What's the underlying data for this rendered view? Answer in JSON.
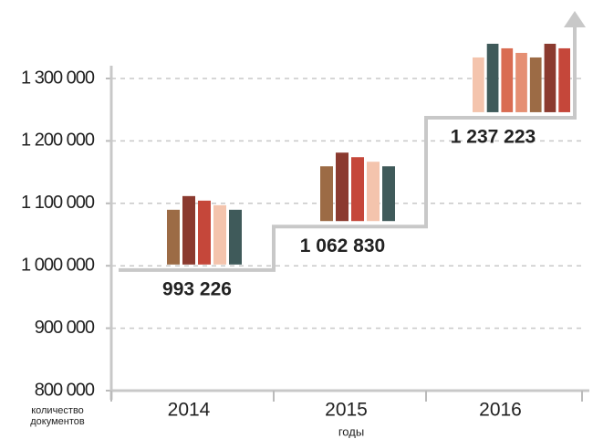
{
  "chart_data": {
    "type": "step",
    "y_label": "количество документов",
    "x_label": "годы",
    "categories": [
      "2014",
      "2015",
      "2016"
    ],
    "values": [
      993226,
      1062830,
      1237223
    ],
    "value_labels": [
      "993 226",
      "1 062 830",
      "1 237 223"
    ],
    "color": "#c8c8c8",
    "ylim": [
      800000,
      1300000
    ],
    "yticks": [
      {
        "value": 800000,
        "label": "800 000"
      },
      {
        "value": 900000,
        "label": "900 000"
      },
      {
        "value": 1000000,
        "label": "1 000 000"
      },
      {
        "value": 1100000,
        "label": "1 100 000"
      },
      {
        "value": 1200000,
        "label": "1 200 000"
      },
      {
        "value": 1300000,
        "label": "1 300 000"
      }
    ],
    "grid": true
  }
}
